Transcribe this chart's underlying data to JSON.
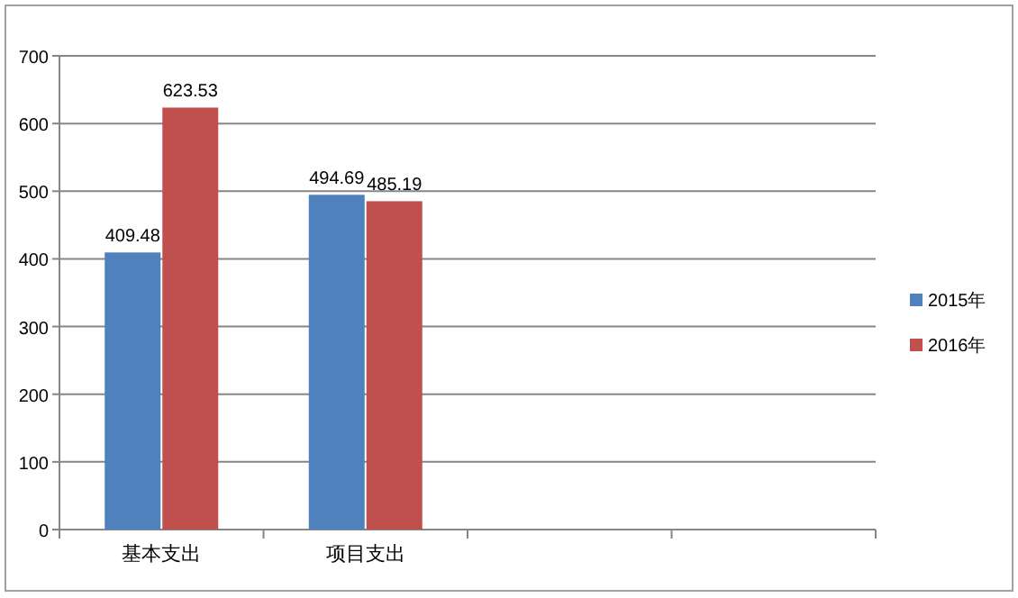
{
  "chart_data": {
    "type": "bar",
    "categories": [
      "基本支出",
      "项目支出",
      null,
      null
    ],
    "series": [
      {
        "name": "2015年",
        "color": "#4f81bd",
        "values": [
          409.48,
          494.69,
          null,
          null
        ]
      },
      {
        "name": "2016年",
        "color": "#c0504d",
        "values": [
          623.53,
          485.19,
          null,
          null
        ]
      }
    ],
    "ylim": [
      0,
      700
    ],
    "yticks": [
      0,
      100,
      200,
      300,
      400,
      500,
      600,
      700
    ],
    "grid": "y",
    "legend": "right",
    "data_labels": true
  }
}
